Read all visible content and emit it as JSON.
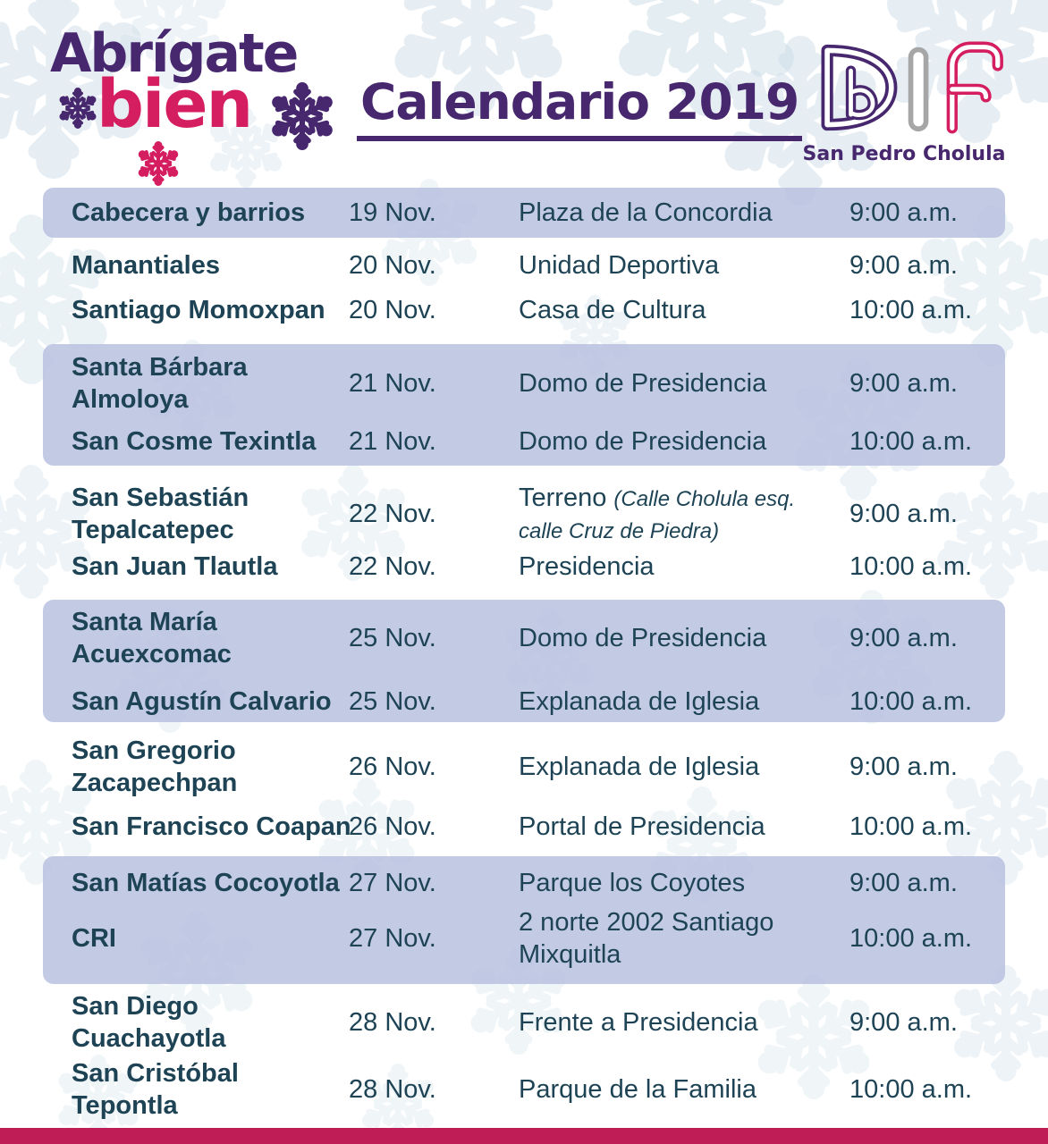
{
  "header": {
    "campaign_line1": "Abrígate",
    "campaign_line2": "bien",
    "title": "Calendario 2019",
    "org_acronym": "DIF",
    "org_name": "San Pedro Cholula"
  },
  "colors": {
    "purple": "#47286f",
    "pink": "#d41e5f",
    "gray": "#a6a6a6",
    "table_text": "#1d4355",
    "band_lavender": "#c5cbe5",
    "footer_bar": "#bf1d55",
    "snowflake_blue": "#cfdfe9"
  },
  "icons": {
    "snowflake": "snowflake-icon"
  },
  "table": {
    "rows": [
      {
        "location": "Cabecera y barrios",
        "date": "19 Nov.",
        "venue": "Plaza de la Concordia",
        "time": "9:00 a.m."
      },
      {
        "location": "Manantiales",
        "date": "20 Nov.",
        "venue": "Unidad Deportiva",
        "time": "9:00 a.m."
      },
      {
        "location": "Santiago Momoxpan",
        "date": "20 Nov.",
        "venue": "Casa de Cultura",
        "time": "10:00 a.m."
      },
      {
        "location": "Santa Bárbara\nAlmoloya",
        "date": "21 Nov.",
        "venue": "Domo de Presidencia",
        "time": "9:00 a.m."
      },
      {
        "location": "San Cosme Texintla",
        "date": "21 Nov.",
        "venue": "Domo de Presidencia",
        "time": "10:00 a.m."
      },
      {
        "location": "San Sebastián\nTepalcatepec",
        "date": "22 Nov.",
        "venue": "Terreno",
        "venue_note": "(Calle Cholula esq. calle Cruz de Piedra)",
        "time": "9:00 a.m."
      },
      {
        "location": "San Juan Tlautla",
        "date": "22 Nov.",
        "venue": "Presidencia",
        "time": "10:00 a.m."
      },
      {
        "location": "Santa María\nAcuexcomac",
        "date": "25 Nov.",
        "venue": "Domo de Presidencia",
        "time": "9:00 a.m."
      },
      {
        "location": "San Agustín Calvario",
        "date": "25 Nov.",
        "venue": "Explanada de Iglesia",
        "time": "10:00 a.m."
      },
      {
        "location": "San Gregorio\nZacapechpan",
        "date": "26 Nov.",
        "venue": "Explanada de Iglesia",
        "time": "9:00 a.m."
      },
      {
        "location": "San Francisco Coapan",
        "date": "26 Nov.",
        "venue": "Portal de Presidencia",
        "time": "10:00 a.m."
      },
      {
        "location": "San Matías Cocoyotla",
        "date": "27 Nov.",
        "venue": "Parque los Coyotes",
        "time": "9:00 a.m."
      },
      {
        "location": "CRI",
        "date": "27 Nov.",
        "venue": "2 norte 2002 Santiago\nMixquitla",
        "time": "10:00 a.m."
      },
      {
        "location": "San Diego\nCuachayotla",
        "date": "28 Nov.",
        "venue": "Frente a Presidencia",
        "time": "9:00 a.m."
      },
      {
        "location": "San Cristóbal\nTepontla",
        "date": "28 Nov.",
        "venue": "Parque de la Familia",
        "time": "10:00 a.m."
      }
    ]
  }
}
